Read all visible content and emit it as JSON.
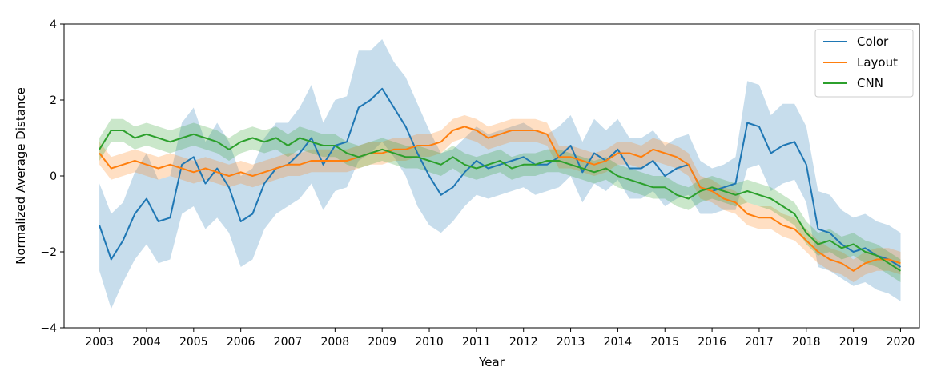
{
  "chart_data": {
    "type": "line",
    "title": "",
    "xlabel": "Year",
    "ylabel": "Normalized Average Distance",
    "xlim": [
      2002.25,
      2020.4
    ],
    "ylim": [
      -4,
      4
    ],
    "x_ticks": [
      2003,
      2004,
      2005,
      2006,
      2007,
      2008,
      2009,
      2010,
      2011,
      2012,
      2013,
      2014,
      2015,
      2016,
      2017,
      2018,
      2019,
      2020
    ],
    "y_ticks": [
      -4,
      -2,
      0,
      2,
      4
    ],
    "grid": false,
    "legend_position": "top-right",
    "series": [
      {
        "name": "Color",
        "color": "#1f77b4",
        "x": [
          2003.0,
          2003.25,
          2003.5,
          2003.75,
          2004.0,
          2004.25,
          2004.5,
          2004.75,
          2005.0,
          2005.25,
          2005.5,
          2005.75,
          2006.0,
          2006.25,
          2006.5,
          2006.75,
          2007.0,
          2007.25,
          2007.5,
          2007.75,
          2008.0,
          2008.25,
          2008.5,
          2008.75,
          2009.0,
          2009.25,
          2009.5,
          2009.75,
          2010.0,
          2010.25,
          2010.5,
          2010.75,
          2011.0,
          2011.25,
          2011.5,
          2011.75,
          2012.0,
          2012.25,
          2012.5,
          2012.75,
          2013.0,
          2013.25,
          2013.5,
          2013.75,
          2014.0,
          2014.25,
          2014.5,
          2014.75,
          2015.0,
          2015.25,
          2015.5,
          2015.75,
          2016.0,
          2016.25,
          2016.5,
          2016.75,
          2017.0,
          2017.25,
          2017.5,
          2017.75,
          2018.0,
          2018.25,
          2018.5,
          2018.75,
          2019.0,
          2019.25,
          2019.5,
          2019.75,
          2020.0
        ],
        "y": [
          -1.3,
          -2.2,
          -1.7,
          -1.0,
          -0.6,
          -1.2,
          -1.1,
          0.3,
          0.5,
          -0.2,
          0.2,
          -0.3,
          -1.2,
          -1.0,
          -0.2,
          0.2,
          0.3,
          0.6,
          1.0,
          0.3,
          0.8,
          0.9,
          1.8,
          2.0,
          2.3,
          1.8,
          1.3,
          0.6,
          0.0,
          -0.5,
          -0.3,
          0.1,
          0.4,
          0.2,
          0.3,
          0.4,
          0.5,
          0.3,
          0.3,
          0.5,
          0.8,
          0.1,
          0.6,
          0.4,
          0.7,
          0.2,
          0.2,
          0.4,
          0.0,
          0.2,
          0.3,
          -0.3,
          -0.4,
          -0.3,
          -0.2,
          1.4,
          1.3,
          0.6,
          0.8,
          0.9,
          0.3,
          -1.4,
          -1.5,
          -1.8,
          -2.0,
          -1.9,
          -2.1,
          -2.2,
          -2.4
        ],
        "band_low": [
          -2.5,
          -3.5,
          -2.8,
          -2.2,
          -1.8,
          -2.3,
          -2.2,
          -1.0,
          -0.8,
          -1.4,
          -1.1,
          -1.5,
          -2.4,
          -2.2,
          -1.4,
          -1.0,
          -0.8,
          -0.6,
          -0.2,
          -0.9,
          -0.4,
          -0.3,
          0.4,
          0.6,
          0.9,
          0.5,
          0.0,
          -0.8,
          -1.3,
          -1.5,
          -1.2,
          -0.8,
          -0.5,
          -0.6,
          -0.5,
          -0.4,
          -0.3,
          -0.5,
          -0.4,
          -0.3,
          0.0,
          -0.7,
          -0.2,
          -0.4,
          -0.1,
          -0.6,
          -0.6,
          -0.4,
          -0.8,
          -0.6,
          -0.5,
          -1.0,
          -1.0,
          -0.9,
          -0.9,
          0.2,
          0.3,
          -0.4,
          -0.2,
          -0.1,
          -0.7,
          -2.4,
          -2.5,
          -2.7,
          -2.9,
          -2.8,
          -3.0,
          -3.1,
          -3.3
        ],
        "band_high": [
          -0.2,
          -1.0,
          -0.7,
          0.1,
          0.6,
          -0.1,
          0.0,
          1.4,
          1.8,
          0.9,
          1.4,
          0.9,
          0.0,
          0.2,
          1.0,
          1.4,
          1.4,
          1.8,
          2.4,
          1.4,
          2.0,
          2.1,
          3.3,
          3.3,
          3.6,
          3.0,
          2.6,
          1.9,
          1.2,
          0.6,
          0.7,
          1.0,
          1.3,
          1.1,
          1.2,
          1.3,
          1.4,
          1.2,
          1.1,
          1.3,
          1.6,
          0.9,
          1.5,
          1.2,
          1.5,
          1.0,
          1.0,
          1.2,
          0.8,
          1.0,
          1.1,
          0.4,
          0.2,
          0.3,
          0.5,
          2.5,
          2.4,
          1.6,
          1.9,
          1.9,
          1.3,
          -0.4,
          -0.5,
          -0.9,
          -1.1,
          -1.0,
          -1.2,
          -1.3,
          -1.5
        ]
      },
      {
        "name": "Layout",
        "color": "#ff7f0e",
        "x": [
          2003.0,
          2003.25,
          2003.5,
          2003.75,
          2004.0,
          2004.25,
          2004.5,
          2004.75,
          2005.0,
          2005.25,
          2005.5,
          2005.75,
          2006.0,
          2006.25,
          2006.5,
          2006.75,
          2007.0,
          2007.25,
          2007.5,
          2007.75,
          2008.0,
          2008.25,
          2008.5,
          2008.75,
          2009.0,
          2009.25,
          2009.5,
          2009.75,
          2010.0,
          2010.25,
          2010.5,
          2010.75,
          2011.0,
          2011.25,
          2011.5,
          2011.75,
          2012.0,
          2012.25,
          2012.5,
          2012.75,
          2013.0,
          2013.25,
          2013.5,
          2013.75,
          2014.0,
          2014.25,
          2014.5,
          2014.75,
          2015.0,
          2015.25,
          2015.5,
          2015.75,
          2016.0,
          2016.25,
          2016.5,
          2016.75,
          2017.0,
          2017.25,
          2017.5,
          2017.75,
          2018.0,
          2018.25,
          2018.5,
          2018.75,
          2019.0,
          2019.25,
          2019.5,
          2019.75,
          2020.0
        ],
        "y": [
          0.6,
          0.2,
          0.3,
          0.4,
          0.3,
          0.2,
          0.3,
          0.2,
          0.1,
          0.2,
          0.1,
          0.0,
          0.1,
          0.0,
          0.1,
          0.2,
          0.3,
          0.3,
          0.4,
          0.4,
          0.4,
          0.4,
          0.5,
          0.6,
          0.6,
          0.7,
          0.7,
          0.8,
          0.8,
          0.9,
          1.2,
          1.3,
          1.2,
          1.0,
          1.1,
          1.2,
          1.2,
          1.2,
          1.1,
          0.5,
          0.5,
          0.4,
          0.3,
          0.4,
          0.6,
          0.6,
          0.5,
          0.7,
          0.6,
          0.5,
          0.3,
          -0.3,
          -0.4,
          -0.6,
          -0.7,
          -1.0,
          -1.1,
          -1.1,
          -1.3,
          -1.4,
          -1.7,
          -2.0,
          -2.2,
          -2.3,
          -2.5,
          -2.3,
          -2.2,
          -2.2,
          -2.3
        ],
        "band_low": [
          0.3,
          -0.1,
          0.0,
          0.1,
          0.0,
          -0.1,
          0.0,
          -0.1,
          -0.2,
          -0.1,
          -0.2,
          -0.3,
          -0.2,
          -0.3,
          -0.2,
          -0.1,
          0.0,
          0.0,
          0.1,
          0.1,
          0.1,
          0.1,
          0.2,
          0.3,
          0.3,
          0.4,
          0.4,
          0.5,
          0.5,
          0.6,
          0.9,
          1.0,
          0.9,
          0.7,
          0.8,
          0.9,
          0.9,
          0.9,
          0.8,
          0.2,
          0.2,
          0.1,
          0.0,
          0.1,
          0.3,
          0.3,
          0.2,
          0.4,
          0.3,
          0.2,
          0.0,
          -0.6,
          -0.7,
          -0.9,
          -1.0,
          -1.3,
          -1.4,
          -1.4,
          -1.6,
          -1.7,
          -2.0,
          -2.3,
          -2.5,
          -2.6,
          -2.8,
          -2.6,
          -2.5,
          -2.5,
          -2.6
        ],
        "band_high": [
          0.9,
          0.5,
          0.6,
          0.7,
          0.6,
          0.5,
          0.6,
          0.5,
          0.4,
          0.5,
          0.4,
          0.3,
          0.4,
          0.3,
          0.4,
          0.5,
          0.6,
          0.6,
          0.7,
          0.7,
          0.7,
          0.7,
          0.8,
          0.9,
          0.9,
          1.0,
          1.0,
          1.1,
          1.1,
          1.2,
          1.5,
          1.6,
          1.5,
          1.3,
          1.4,
          1.5,
          1.5,
          1.5,
          1.4,
          0.8,
          0.8,
          0.7,
          0.6,
          0.7,
          0.9,
          0.9,
          0.8,
          1.0,
          0.9,
          0.8,
          0.6,
          0.0,
          -0.1,
          -0.3,
          -0.4,
          -0.7,
          -0.8,
          -0.8,
          -1.0,
          -1.1,
          -1.4,
          -1.7,
          -1.9,
          -2.0,
          -2.2,
          -2.0,
          -1.9,
          -1.9,
          -2.0
        ]
      },
      {
        "name": "CNN",
        "color": "#2ca02c",
        "x": [
          2003.0,
          2003.25,
          2003.5,
          2003.75,
          2004.0,
          2004.25,
          2004.5,
          2004.75,
          2005.0,
          2005.25,
          2005.5,
          2005.75,
          2006.0,
          2006.25,
          2006.5,
          2006.75,
          2007.0,
          2007.25,
          2007.5,
          2007.75,
          2008.0,
          2008.25,
          2008.5,
          2008.75,
          2009.0,
          2009.25,
          2009.5,
          2009.75,
          2010.0,
          2010.25,
          2010.5,
          2010.75,
          2011.0,
          2011.25,
          2011.5,
          2011.75,
          2012.0,
          2012.25,
          2012.5,
          2012.75,
          2013.0,
          2013.25,
          2013.5,
          2013.75,
          2014.0,
          2014.25,
          2014.5,
          2014.75,
          2015.0,
          2015.25,
          2015.5,
          2015.75,
          2016.0,
          2016.25,
          2016.5,
          2016.75,
          2017.0,
          2017.25,
          2017.5,
          2017.75,
          2018.0,
          2018.25,
          2018.5,
          2018.75,
          2019.0,
          2019.25,
          2019.5,
          2019.75,
          2020.0
        ],
        "y": [
          0.7,
          1.2,
          1.2,
          1.0,
          1.1,
          1.0,
          0.9,
          1.0,
          1.1,
          1.0,
          0.9,
          0.7,
          0.9,
          1.0,
          0.9,
          1.0,
          0.8,
          1.0,
          0.9,
          0.8,
          0.8,
          0.6,
          0.5,
          0.6,
          0.7,
          0.6,
          0.5,
          0.5,
          0.4,
          0.3,
          0.5,
          0.3,
          0.2,
          0.3,
          0.4,
          0.2,
          0.3,
          0.3,
          0.4,
          0.4,
          0.3,
          0.2,
          0.1,
          0.2,
          0.0,
          -0.1,
          -0.2,
          -0.3,
          -0.3,
          -0.5,
          -0.6,
          -0.4,
          -0.3,
          -0.4,
          -0.5,
          -0.4,
          -0.5,
          -0.6,
          -0.8,
          -1.0,
          -1.5,
          -1.8,
          -1.7,
          -1.9,
          -1.8,
          -2.0,
          -2.1,
          -2.3,
          -2.5
        ],
        "band_low": [
          0.4,
          0.9,
          0.9,
          0.7,
          0.8,
          0.7,
          0.6,
          0.7,
          0.8,
          0.7,
          0.6,
          0.4,
          0.6,
          0.7,
          0.6,
          0.7,
          0.5,
          0.7,
          0.6,
          0.5,
          0.5,
          0.3,
          0.2,
          0.3,
          0.4,
          0.3,
          0.2,
          0.2,
          0.1,
          0.0,
          0.2,
          0.0,
          -0.1,
          0.0,
          0.1,
          -0.1,
          0.0,
          0.0,
          0.1,
          0.1,
          0.0,
          -0.1,
          -0.2,
          -0.1,
          -0.3,
          -0.4,
          -0.5,
          -0.6,
          -0.6,
          -0.8,
          -0.9,
          -0.7,
          -0.6,
          -0.7,
          -0.8,
          -0.7,
          -0.8,
          -0.9,
          -1.1,
          -1.3,
          -1.8,
          -2.1,
          -2.0,
          -2.2,
          -2.1,
          -2.3,
          -2.4,
          -2.6,
          -2.8
        ],
        "band_high": [
          1.0,
          1.5,
          1.5,
          1.3,
          1.4,
          1.3,
          1.2,
          1.3,
          1.4,
          1.3,
          1.2,
          1.0,
          1.2,
          1.3,
          1.2,
          1.3,
          1.1,
          1.3,
          1.2,
          1.1,
          1.1,
          0.9,
          0.8,
          0.9,
          1.0,
          0.9,
          0.8,
          0.8,
          0.7,
          0.6,
          0.8,
          0.6,
          0.5,
          0.6,
          0.7,
          0.5,
          0.6,
          0.6,
          0.7,
          0.7,
          0.6,
          0.5,
          0.4,
          0.5,
          0.3,
          0.2,
          0.1,
          0.0,
          0.0,
          -0.2,
          -0.3,
          -0.1,
          0.0,
          -0.1,
          -0.2,
          -0.1,
          -0.2,
          -0.3,
          -0.5,
          -0.7,
          -1.2,
          -1.5,
          -1.4,
          -1.6,
          -1.5,
          -1.7,
          -1.8,
          -2.0,
          -2.2
        ]
      }
    ]
  }
}
